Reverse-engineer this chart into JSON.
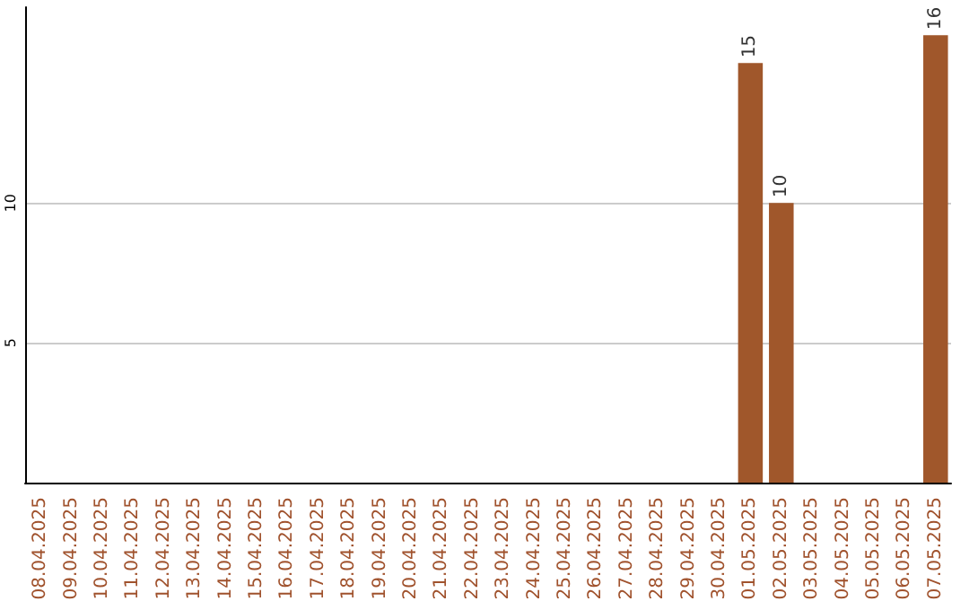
{
  "chart_data": {
    "type": "bar",
    "categories": [
      "08.04.2025",
      "09.04.2025",
      "10.04.2025",
      "11.04.2025",
      "12.04.2025",
      "13.04.2025",
      "14.04.2025",
      "15.04.2025",
      "16.04.2025",
      "17.04.2025",
      "18.04.2025",
      "19.04.2025",
      "20.04.2025",
      "21.04.2025",
      "22.04.2025",
      "23.04.2025",
      "24.04.2025",
      "25.04.2025",
      "26.04.2025",
      "27.04.2025",
      "28.04.2025",
      "29.04.2025",
      "30.04.2025",
      "01.05.2025",
      "02.05.2025",
      "03.05.2025",
      "04.05.2025",
      "05.05.2025",
      "06.05.2025",
      "07.05.2025"
    ],
    "values": [
      0,
      0,
      0,
      0,
      0,
      0,
      0,
      0,
      0,
      0,
      0,
      0,
      0,
      0,
      0,
      0,
      0,
      0,
      0,
      0,
      0,
      0,
      0,
      15,
      10,
      0,
      0,
      0,
      0,
      16
    ],
    "value_labels": [
      null,
      null,
      null,
      null,
      null,
      null,
      null,
      null,
      null,
      null,
      null,
      null,
      null,
      null,
      null,
      null,
      null,
      null,
      null,
      null,
      null,
      null,
      null,
      "15",
      "10",
      null,
      null,
      null,
      null,
      "16"
    ],
    "color": "#a0572b",
    "ylim": [
      0,
      17
    ],
    "yticks": [
      5,
      10
    ],
    "grid": "y"
  }
}
